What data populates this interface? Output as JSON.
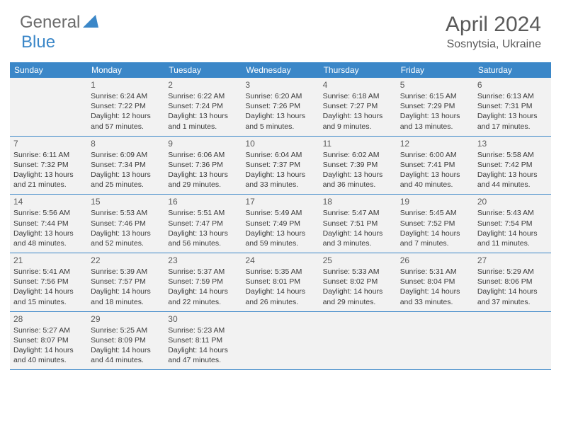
{
  "logo": {
    "general": "General",
    "blue": "Blue"
  },
  "title": "April 2024",
  "location": "Sosnytsia, Ukraine",
  "colors": {
    "header_bg": "#3b87c8",
    "cell_bg": "#f2f2f2",
    "logo_gray": "#6b6b6b",
    "logo_blue": "#3b87c8",
    "text_dark": "#3a3a3a",
    "title_color": "#5a5a5a"
  },
  "dayNames": [
    "Sunday",
    "Monday",
    "Tuesday",
    "Wednesday",
    "Thursday",
    "Friday",
    "Saturday"
  ],
  "weeks": [
    [
      {
        "empty": true
      },
      {
        "num": "1",
        "sunrise": "Sunrise: 6:24 AM",
        "sunset": "Sunset: 7:22 PM",
        "day1": "Daylight: 12 hours",
        "day2": "and 57 minutes."
      },
      {
        "num": "2",
        "sunrise": "Sunrise: 6:22 AM",
        "sunset": "Sunset: 7:24 PM",
        "day1": "Daylight: 13 hours",
        "day2": "and 1 minutes."
      },
      {
        "num": "3",
        "sunrise": "Sunrise: 6:20 AM",
        "sunset": "Sunset: 7:26 PM",
        "day1": "Daylight: 13 hours",
        "day2": "and 5 minutes."
      },
      {
        "num": "4",
        "sunrise": "Sunrise: 6:18 AM",
        "sunset": "Sunset: 7:27 PM",
        "day1": "Daylight: 13 hours",
        "day2": "and 9 minutes."
      },
      {
        "num": "5",
        "sunrise": "Sunrise: 6:15 AM",
        "sunset": "Sunset: 7:29 PM",
        "day1": "Daylight: 13 hours",
        "day2": "and 13 minutes."
      },
      {
        "num": "6",
        "sunrise": "Sunrise: 6:13 AM",
        "sunset": "Sunset: 7:31 PM",
        "day1": "Daylight: 13 hours",
        "day2": "and 17 minutes."
      }
    ],
    [
      {
        "num": "7",
        "sunrise": "Sunrise: 6:11 AM",
        "sunset": "Sunset: 7:32 PM",
        "day1": "Daylight: 13 hours",
        "day2": "and 21 minutes."
      },
      {
        "num": "8",
        "sunrise": "Sunrise: 6:09 AM",
        "sunset": "Sunset: 7:34 PM",
        "day1": "Daylight: 13 hours",
        "day2": "and 25 minutes."
      },
      {
        "num": "9",
        "sunrise": "Sunrise: 6:06 AM",
        "sunset": "Sunset: 7:36 PM",
        "day1": "Daylight: 13 hours",
        "day2": "and 29 minutes."
      },
      {
        "num": "10",
        "sunrise": "Sunrise: 6:04 AM",
        "sunset": "Sunset: 7:37 PM",
        "day1": "Daylight: 13 hours",
        "day2": "and 33 minutes."
      },
      {
        "num": "11",
        "sunrise": "Sunrise: 6:02 AM",
        "sunset": "Sunset: 7:39 PM",
        "day1": "Daylight: 13 hours",
        "day2": "and 36 minutes."
      },
      {
        "num": "12",
        "sunrise": "Sunrise: 6:00 AM",
        "sunset": "Sunset: 7:41 PM",
        "day1": "Daylight: 13 hours",
        "day2": "and 40 minutes."
      },
      {
        "num": "13",
        "sunrise": "Sunrise: 5:58 AM",
        "sunset": "Sunset: 7:42 PM",
        "day1": "Daylight: 13 hours",
        "day2": "and 44 minutes."
      }
    ],
    [
      {
        "num": "14",
        "sunrise": "Sunrise: 5:56 AM",
        "sunset": "Sunset: 7:44 PM",
        "day1": "Daylight: 13 hours",
        "day2": "and 48 minutes."
      },
      {
        "num": "15",
        "sunrise": "Sunrise: 5:53 AM",
        "sunset": "Sunset: 7:46 PM",
        "day1": "Daylight: 13 hours",
        "day2": "and 52 minutes."
      },
      {
        "num": "16",
        "sunrise": "Sunrise: 5:51 AM",
        "sunset": "Sunset: 7:47 PM",
        "day1": "Daylight: 13 hours",
        "day2": "and 56 minutes."
      },
      {
        "num": "17",
        "sunrise": "Sunrise: 5:49 AM",
        "sunset": "Sunset: 7:49 PM",
        "day1": "Daylight: 13 hours",
        "day2": "and 59 minutes."
      },
      {
        "num": "18",
        "sunrise": "Sunrise: 5:47 AM",
        "sunset": "Sunset: 7:51 PM",
        "day1": "Daylight: 14 hours",
        "day2": "and 3 minutes."
      },
      {
        "num": "19",
        "sunrise": "Sunrise: 5:45 AM",
        "sunset": "Sunset: 7:52 PM",
        "day1": "Daylight: 14 hours",
        "day2": "and 7 minutes."
      },
      {
        "num": "20",
        "sunrise": "Sunrise: 5:43 AM",
        "sunset": "Sunset: 7:54 PM",
        "day1": "Daylight: 14 hours",
        "day2": "and 11 minutes."
      }
    ],
    [
      {
        "num": "21",
        "sunrise": "Sunrise: 5:41 AM",
        "sunset": "Sunset: 7:56 PM",
        "day1": "Daylight: 14 hours",
        "day2": "and 15 minutes."
      },
      {
        "num": "22",
        "sunrise": "Sunrise: 5:39 AM",
        "sunset": "Sunset: 7:57 PM",
        "day1": "Daylight: 14 hours",
        "day2": "and 18 minutes."
      },
      {
        "num": "23",
        "sunrise": "Sunrise: 5:37 AM",
        "sunset": "Sunset: 7:59 PM",
        "day1": "Daylight: 14 hours",
        "day2": "and 22 minutes."
      },
      {
        "num": "24",
        "sunrise": "Sunrise: 5:35 AM",
        "sunset": "Sunset: 8:01 PM",
        "day1": "Daylight: 14 hours",
        "day2": "and 26 minutes."
      },
      {
        "num": "25",
        "sunrise": "Sunrise: 5:33 AM",
        "sunset": "Sunset: 8:02 PM",
        "day1": "Daylight: 14 hours",
        "day2": "and 29 minutes."
      },
      {
        "num": "26",
        "sunrise": "Sunrise: 5:31 AM",
        "sunset": "Sunset: 8:04 PM",
        "day1": "Daylight: 14 hours",
        "day2": "and 33 minutes."
      },
      {
        "num": "27",
        "sunrise": "Sunrise: 5:29 AM",
        "sunset": "Sunset: 8:06 PM",
        "day1": "Daylight: 14 hours",
        "day2": "and 37 minutes."
      }
    ],
    [
      {
        "num": "28",
        "sunrise": "Sunrise: 5:27 AM",
        "sunset": "Sunset: 8:07 PM",
        "day1": "Daylight: 14 hours",
        "day2": "and 40 minutes."
      },
      {
        "num": "29",
        "sunrise": "Sunrise: 5:25 AM",
        "sunset": "Sunset: 8:09 PM",
        "day1": "Daylight: 14 hours",
        "day2": "and 44 minutes."
      },
      {
        "num": "30",
        "sunrise": "Sunrise: 5:23 AM",
        "sunset": "Sunset: 8:11 PM",
        "day1": "Daylight: 14 hours",
        "day2": "and 47 minutes."
      },
      {
        "empty": true
      },
      {
        "empty": true
      },
      {
        "empty": true
      },
      {
        "empty": true
      }
    ]
  ]
}
